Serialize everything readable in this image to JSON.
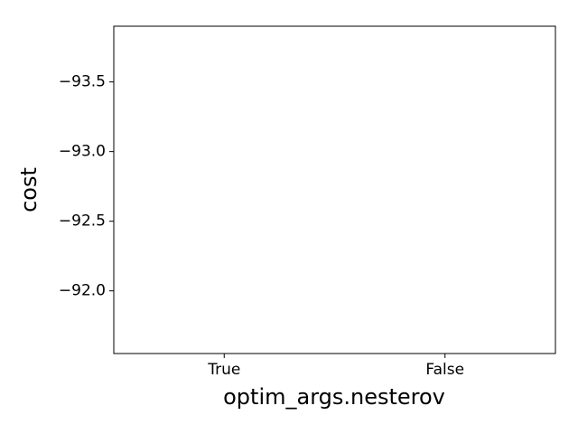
{
  "chart_data": {
    "type": "bar",
    "xlabel": "optim_args.nesterov",
    "ylabel": "cost",
    "categories": [
      "True",
      "False"
    ],
    "category_colors": [
      "#000000",
      "#ff0000"
    ],
    "ylim": [
      -91.55,
      -93.9
    ],
    "yticks": [
      {
        "value": -93.5,
        "label": "−93.5"
      },
      {
        "value": -93.0,
        "label": "−93.0"
      },
      {
        "value": -92.5,
        "label": "−92.5"
      },
      {
        "value": -92.0,
        "label": "−92.0"
      }
    ],
    "grid": false
  }
}
